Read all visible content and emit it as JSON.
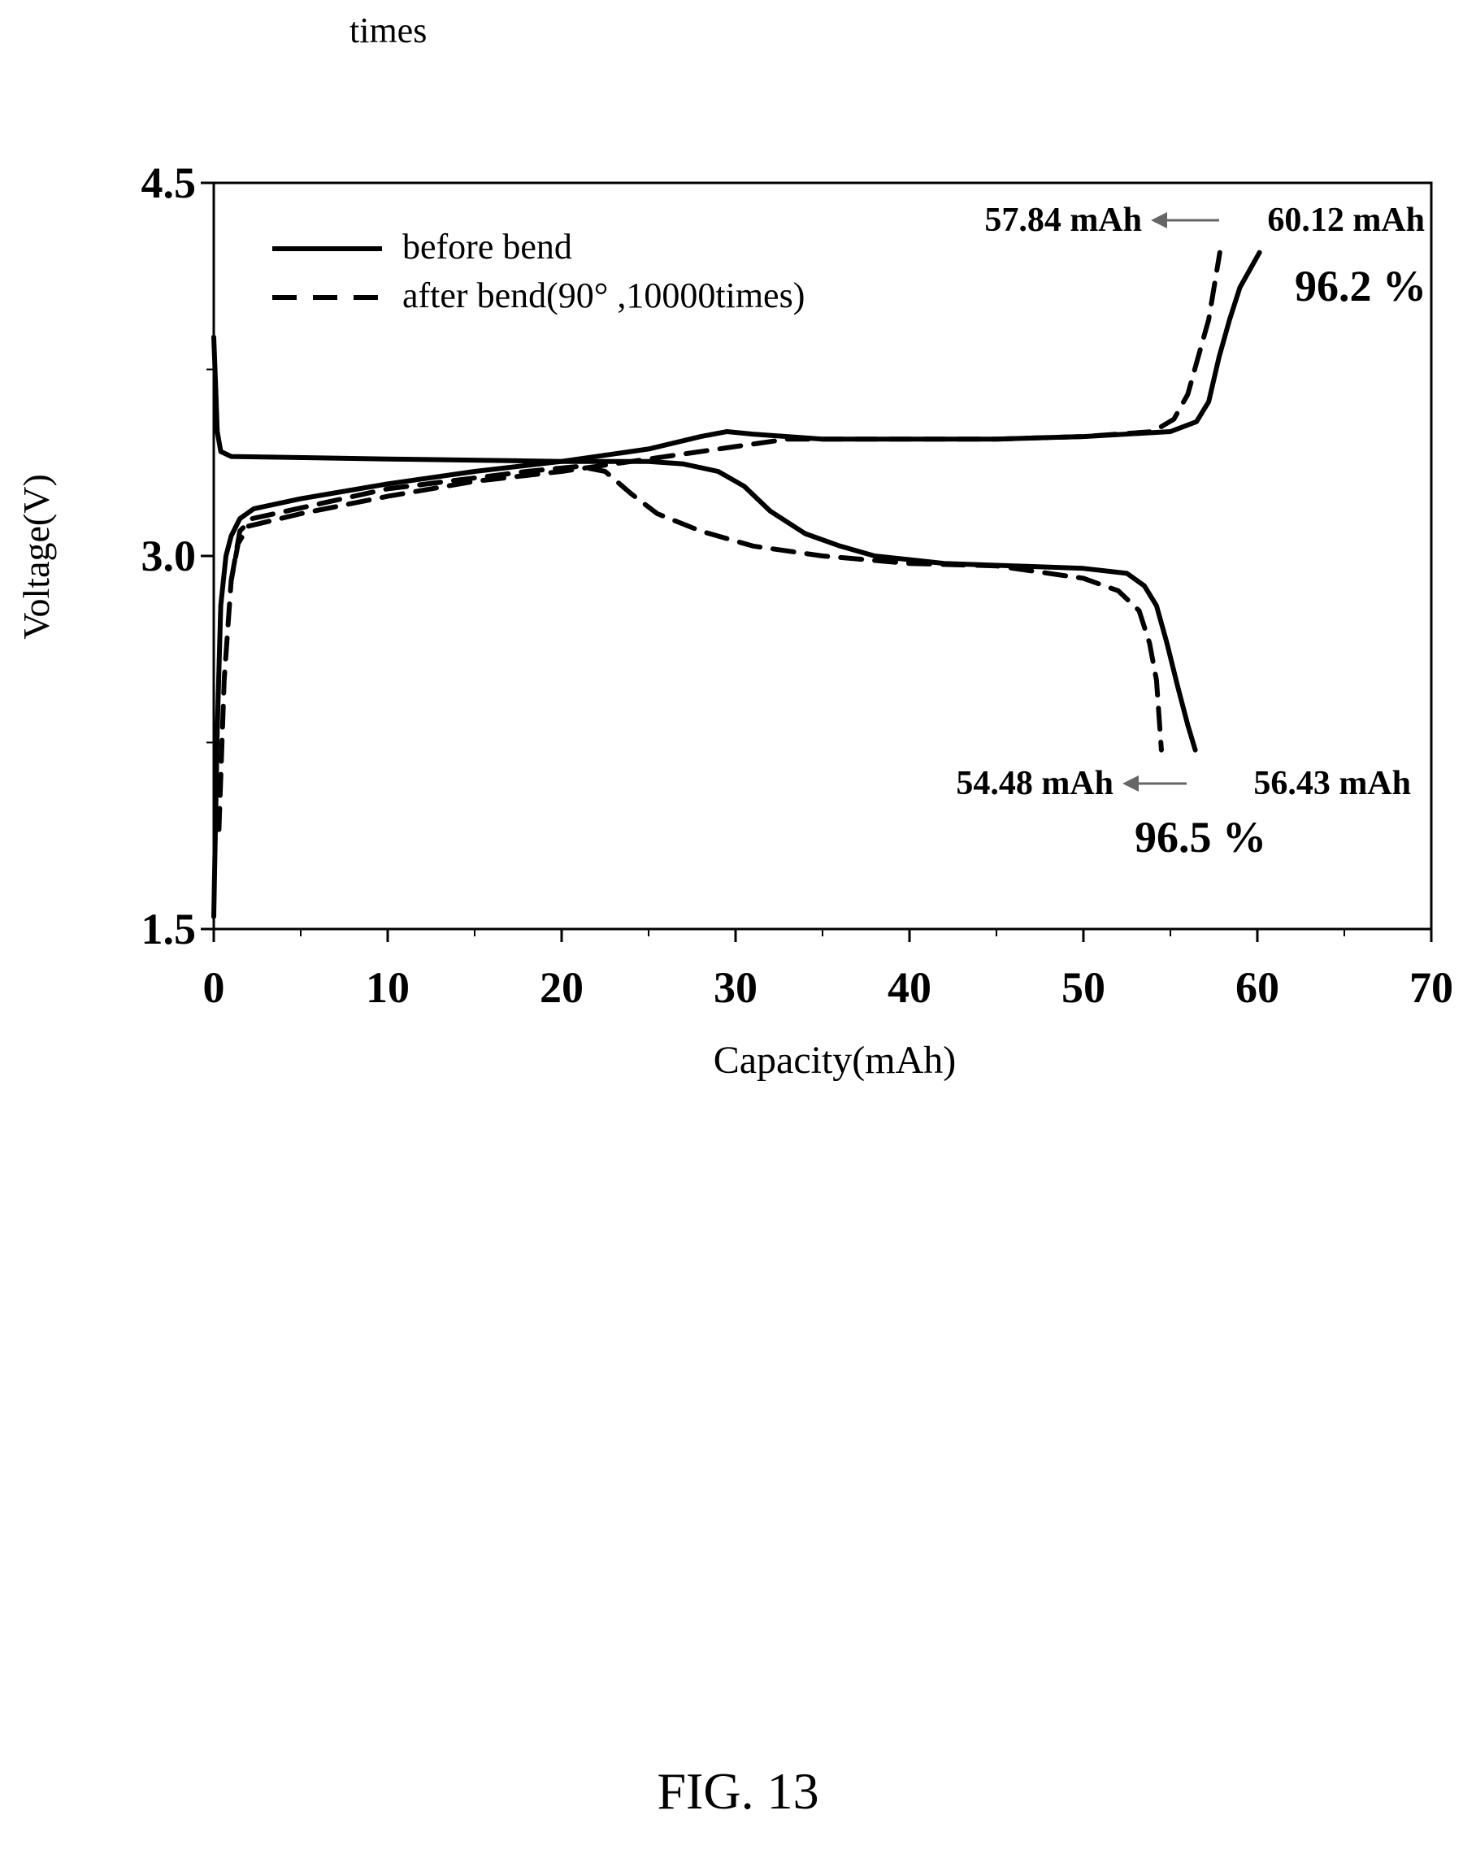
{
  "top_text": "times",
  "figure_caption": "FIG. 13",
  "chart_data": {
    "type": "line",
    "title": "",
    "xlabel": "Capacity(mAh)",
    "ylabel": "Voltage(V)",
    "xlim": [
      0,
      70
    ],
    "ylim": [
      1.5,
      4.5
    ],
    "xticks": [
      "0",
      "10",
      "20",
      "30",
      "40",
      "50",
      "60",
      "70"
    ],
    "yticks": [
      "1.5",
      "3.0",
      "4.5"
    ],
    "grid": false,
    "legend_position": "top-left",
    "series": [
      {
        "name": "before bend",
        "style": "solid",
        "color": "#000000",
        "segments": [
          [
            [
              0.0,
              1.55
            ],
            [
              0.2,
              2.3
            ],
            [
              0.4,
              2.8
            ],
            [
              0.7,
              3.0
            ],
            [
              1.0,
              3.08
            ],
            [
              1.5,
              3.15
            ],
            [
              2.3,
              3.19
            ],
            [
              5,
              3.23
            ],
            [
              10,
              3.29
            ],
            [
              15,
              3.34
            ],
            [
              20,
              3.38
            ],
            [
              25,
              3.43
            ],
            [
              28,
              3.48
            ],
            [
              29.5,
              3.5
            ],
            [
              31,
              3.49
            ],
            [
              35,
              3.47
            ],
            [
              40,
              3.47
            ],
            [
              45,
              3.47
            ],
            [
              50,
              3.48
            ],
            [
              55,
              3.5
            ],
            [
              56.5,
              3.54
            ],
            [
              57.2,
              3.62
            ],
            [
              57.8,
              3.8
            ],
            [
              58.4,
              3.95
            ],
            [
              59.0,
              4.08
            ],
            [
              60.12,
              4.22
            ]
          ],
          [
            [
              0.0,
              3.88
            ],
            [
              0.1,
              3.7
            ],
            [
              0.2,
              3.5
            ],
            [
              0.4,
              3.42
            ],
            [
              1.0,
              3.4
            ],
            [
              10,
              3.39
            ],
            [
              20,
              3.38
            ],
            [
              25,
              3.38
            ],
            [
              27,
              3.37
            ],
            [
              29,
              3.34
            ],
            [
              30.5,
              3.28
            ],
            [
              32,
              3.18
            ],
            [
              34,
              3.09
            ],
            [
              36,
              3.04
            ],
            [
              38,
              3.0
            ],
            [
              42,
              2.97
            ],
            [
              46,
              2.96
            ],
            [
              50,
              2.95
            ],
            [
              52.5,
              2.93
            ],
            [
              53.5,
              2.88
            ],
            [
              54.2,
              2.8
            ],
            [
              54.8,
              2.65
            ],
            [
              55.4,
              2.48
            ],
            [
              56.0,
              2.32
            ],
            [
              56.43,
              2.22
            ]
          ]
        ]
      },
      {
        "name": "after bend(90° ,10000times)",
        "style": "dashed",
        "color": "#000000",
        "segments": [
          [
            [
              0.3,
              1.9
            ],
            [
              0.6,
              2.5
            ],
            [
              1.0,
              2.9
            ],
            [
              1.4,
              3.05
            ],
            [
              2.0,
              3.12
            ],
            [
              5,
              3.17
            ],
            [
              10,
              3.24
            ],
            [
              15,
              3.3
            ],
            [
              20,
              3.34
            ],
            [
              22,
              3.36
            ],
            [
              25,
              3.39
            ],
            [
              30,
              3.44
            ],
            [
              33,
              3.47
            ],
            [
              40,
              3.47
            ],
            [
              45,
              3.47
            ],
            [
              50,
              3.48
            ],
            [
              54,
              3.5
            ],
            [
              55.2,
              3.55
            ],
            [
              56.0,
              3.65
            ],
            [
              56.6,
              3.8
            ],
            [
              57.2,
              3.95
            ],
            [
              57.84,
              4.22
            ]
          ],
          [
            [
              1.0,
              2.9
            ],
            [
              1.5,
              3.1
            ],
            [
              2.2,
              3.15
            ],
            [
              10,
              3.27
            ],
            [
              18,
              3.34
            ],
            [
              21,
              3.36
            ],
            [
              22.5,
              3.34
            ],
            [
              24,
              3.25
            ],
            [
              25.5,
              3.17
            ],
            [
              28,
              3.1
            ],
            [
              31,
              3.04
            ],
            [
              35,
              3.0
            ],
            [
              40,
              2.97
            ],
            [
              45,
              2.96
            ],
            [
              50,
              2.91
            ],
            [
              52,
              2.86
            ],
            [
              53.2,
              2.78
            ],
            [
              53.8,
              2.65
            ],
            [
              54.2,
              2.5
            ],
            [
              54.48,
              2.22
            ]
          ]
        ]
      }
    ],
    "annotations": [
      {
        "key": "charge_after",
        "text": "57.84 mAh"
      },
      {
        "key": "charge_before",
        "text": "60.12 mAh"
      },
      {
        "key": "charge_ratio",
        "text": "96.2 %"
      },
      {
        "key": "discharge_after",
        "text": "54.48 mAh"
      },
      {
        "key": "discharge_before",
        "text": "56.43 mAh"
      },
      {
        "key": "discharge_ratio",
        "text": "96.5 %"
      }
    ],
    "arrow_color": "#666666"
  }
}
